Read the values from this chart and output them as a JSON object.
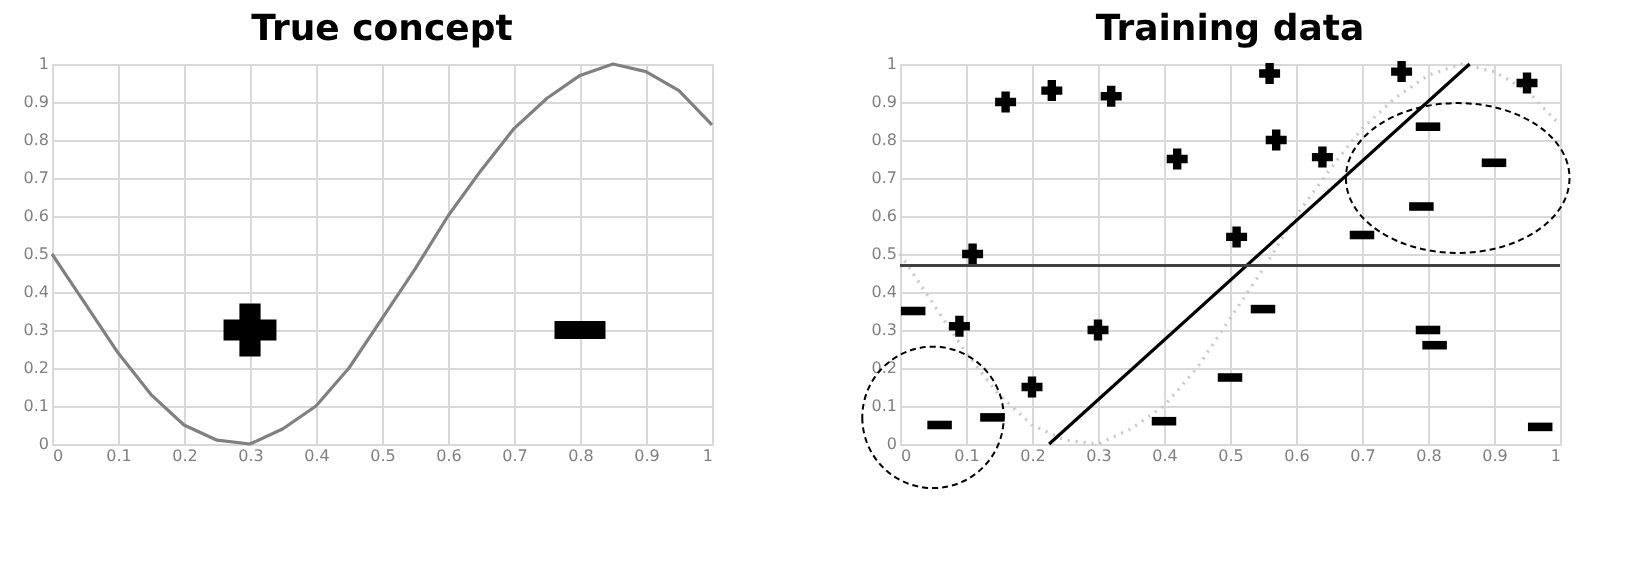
{
  "chart_data": [
    {
      "type": "line",
      "title": "True concept",
      "xlim": [
        0,
        1
      ],
      "ylim": [
        0,
        1
      ],
      "xticks": [
        0,
        0.1,
        0.2,
        0.3,
        0.4,
        0.5,
        0.6,
        0.7,
        0.8,
        0.9,
        1
      ],
      "yticks": [
        0,
        0.1,
        0.2,
        0.3,
        0.4,
        0.5,
        0.6,
        0.7,
        0.8,
        0.9,
        1
      ],
      "grid": true,
      "series": [
        {
          "type": "line",
          "color": "#808080",
          "line_style": "solid",
          "marker": "none",
          "x": [
            0,
            0.05,
            0.1,
            0.15,
            0.2,
            0.25,
            0.3,
            0.35,
            0.4,
            0.45,
            0.5,
            0.55,
            0.6,
            0.65,
            0.7,
            0.75,
            0.8,
            0.85,
            0.9,
            0.95,
            1
          ],
          "values": [
            0.5,
            0.37,
            0.24,
            0.13,
            0.05,
            0.01,
            0.0,
            0.04,
            0.1,
            0.2,
            0.33,
            0.46,
            0.6,
            0.72,
            0.83,
            0.91,
            0.97,
            1.0,
            0.98,
            0.93,
            0.84
          ]
        },
        {
          "type": "scatter",
          "color": "#000000",
          "marker": "cross",
          "x": [
            0.3
          ],
          "values": [
            0.3
          ]
        },
        {
          "type": "scatter",
          "color": "#000000",
          "x": [
            0.8
          ],
          "values": [
            0.3
          ]
        }
      ]
    },
    {
      "type": "scatter",
      "title": "Training data",
      "xlim": [
        0,
        1
      ],
      "ylim": [
        0,
        1
      ],
      "xticks": [
        0,
        0.1,
        0.2,
        0.3,
        0.4,
        0.5,
        0.6,
        0.7,
        0.8,
        0.9,
        1
      ],
      "yticks": [
        0,
        0.1,
        0.2,
        0.3,
        0.4,
        0.5,
        0.6,
        0.7,
        0.8,
        0.9,
        1
      ],
      "grid": true,
      "ref_lines": [
        {
          "axis": "y",
          "value": 0.47,
          "label": null,
          "color": "#404040"
        }
      ],
      "series": [
        {
          "type": "line",
          "color": "#c8c8c8",
          "line_style": "dotted",
          "marker": "none",
          "x": [
            0,
            0.05,
            0.1,
            0.15,
            0.2,
            0.25,
            0.3,
            0.35,
            0.4,
            0.45,
            0.5,
            0.55,
            0.6,
            0.65,
            0.7,
            0.75,
            0.8,
            0.85,
            0.9,
            0.95,
            1
          ],
          "values": [
            0.5,
            0.37,
            0.24,
            0.13,
            0.05,
            0.01,
            0.0,
            0.04,
            0.1,
            0.2,
            0.33,
            0.46,
            0.6,
            0.72,
            0.83,
            0.91,
            0.97,
            1.0,
            0.98,
            0.93,
            0.84
          ]
        },
        {
          "type": "line",
          "color": "#000000",
          "line_style": "solid",
          "marker": "none",
          "x": [
            0.226,
            0.863
          ],
          "values": [
            0,
            1
          ]
        },
        {
          "type": "scatter",
          "color": "#000000",
          "marker": "cross",
          "x": [
            0.16,
            0.23,
            0.32,
            0.11,
            0.09,
            0.2,
            0.3,
            0.42,
            0.51,
            0.56,
            0.57,
            0.64,
            0.76,
            0.95
          ],
          "values": [
            0.9,
            0.93,
            0.915,
            0.5,
            0.31,
            0.15,
            0.3,
            0.75,
            0.545,
            0.975,
            0.8,
            0.755,
            0.98,
            0.95
          ]
        },
        {
          "type": "scatter",
          "color": "#000000",
          "x": [
            0.02,
            0.06,
            0.14,
            0.4,
            0.5,
            0.55,
            0.7,
            0.8,
            0.79,
            0.9,
            0.8,
            0.81,
            0.97
          ],
          "values": [
            0.35,
            0.05,
            0.07,
            0.06,
            0.175,
            0.355,
            0.55,
            0.835,
            0.625,
            0.74,
            0.3,
            0.26,
            0.045
          ]
        }
      ]
    }
  ]
}
